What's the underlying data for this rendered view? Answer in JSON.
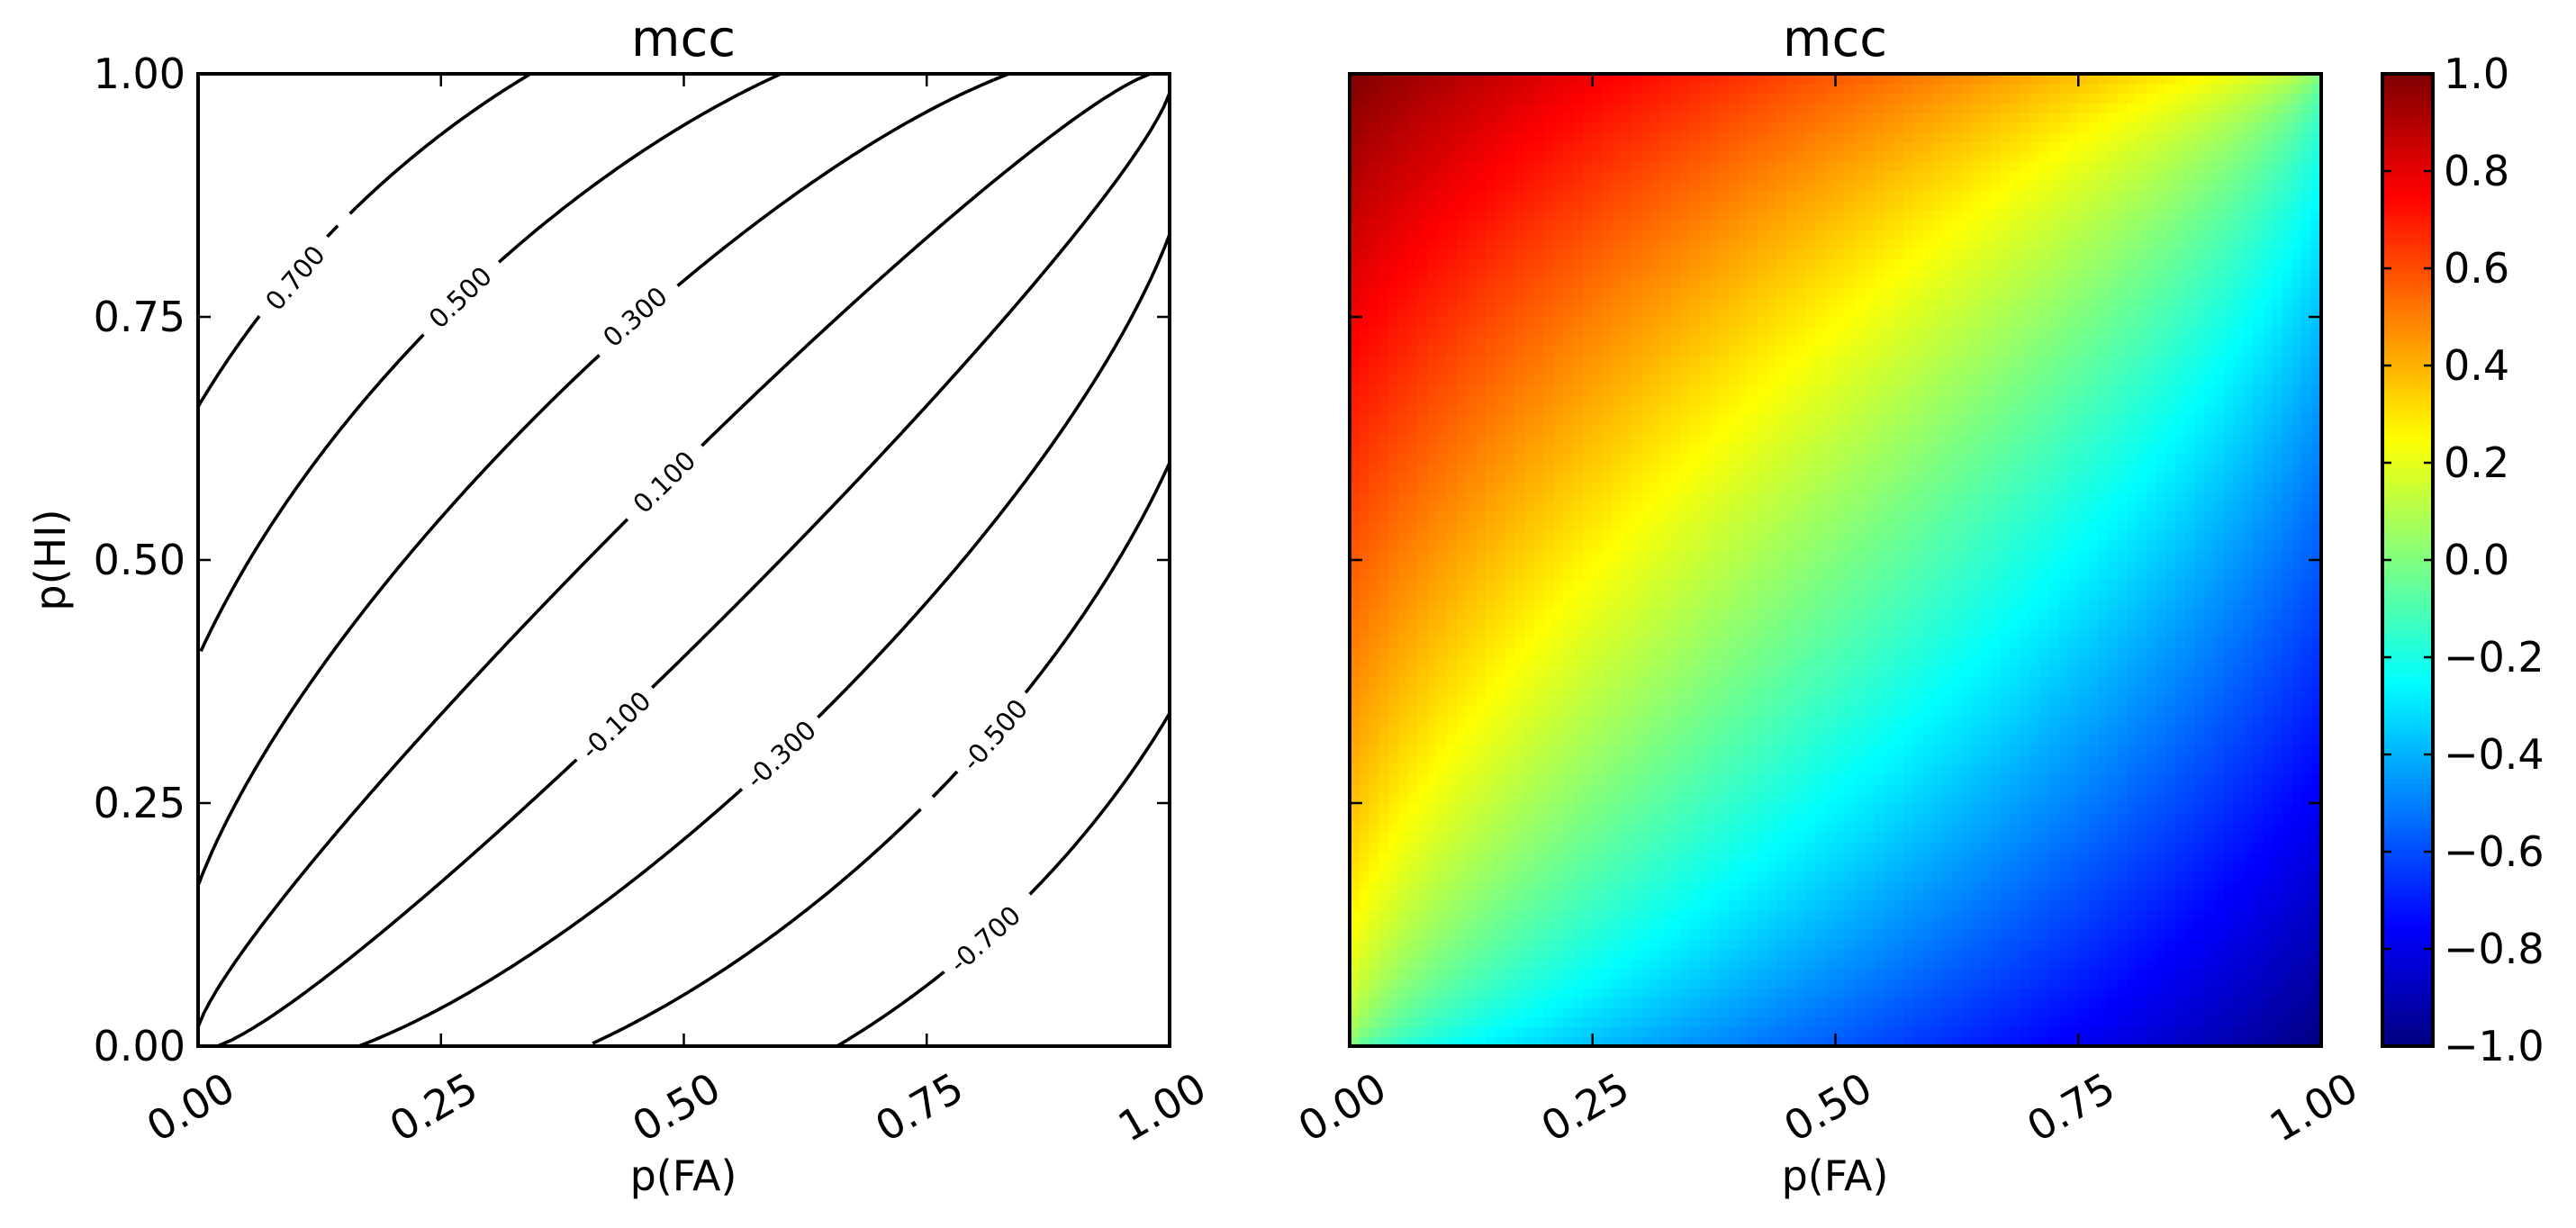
{
  "chart_data": [
    {
      "type": "contour",
      "title": "mcc",
      "xlabel": "p(FA)",
      "ylabel": "p(HI)",
      "xlim": [
        0.0,
        1.0
      ],
      "ylim": [
        0.0,
        1.0
      ],
      "xticks": [
        "0.00",
        "0.25",
        "0.50",
        "0.75",
        "1.00"
      ],
      "yticks": [
        "0.00",
        "0.25",
        "0.50",
        "0.75",
        "1.00"
      ],
      "grid": false,
      "contour_levels": [
        0.7,
        0.5,
        0.3,
        0.1,
        -0.1,
        -0.3,
        -0.5,
        -0.7
      ],
      "contour_labels": [
        "0.700",
        "0.500",
        "0.300",
        "0.100",
        "-0.100",
        "-0.300",
        "-0.500",
        "-0.700"
      ]
    },
    {
      "type": "heatmap",
      "title": "mcc",
      "xlabel": "p(FA)",
      "xlim": [
        0.0,
        1.0
      ],
      "ylim": [
        0.0,
        1.0
      ],
      "xticks": [
        "0.00",
        "0.25",
        "0.50",
        "0.75",
        "1.00"
      ],
      "colormap": "jet",
      "grid": false,
      "colorbar": {
        "range": [
          -1.0,
          1.0
        ],
        "ticks": [
          "1.0",
          "0.8",
          "0.6",
          "0.4",
          "0.2",
          "0.0",
          "−0.2",
          "−0.4",
          "−0.6",
          "−0.8",
          "−1.0"
        ]
      }
    }
  ]
}
